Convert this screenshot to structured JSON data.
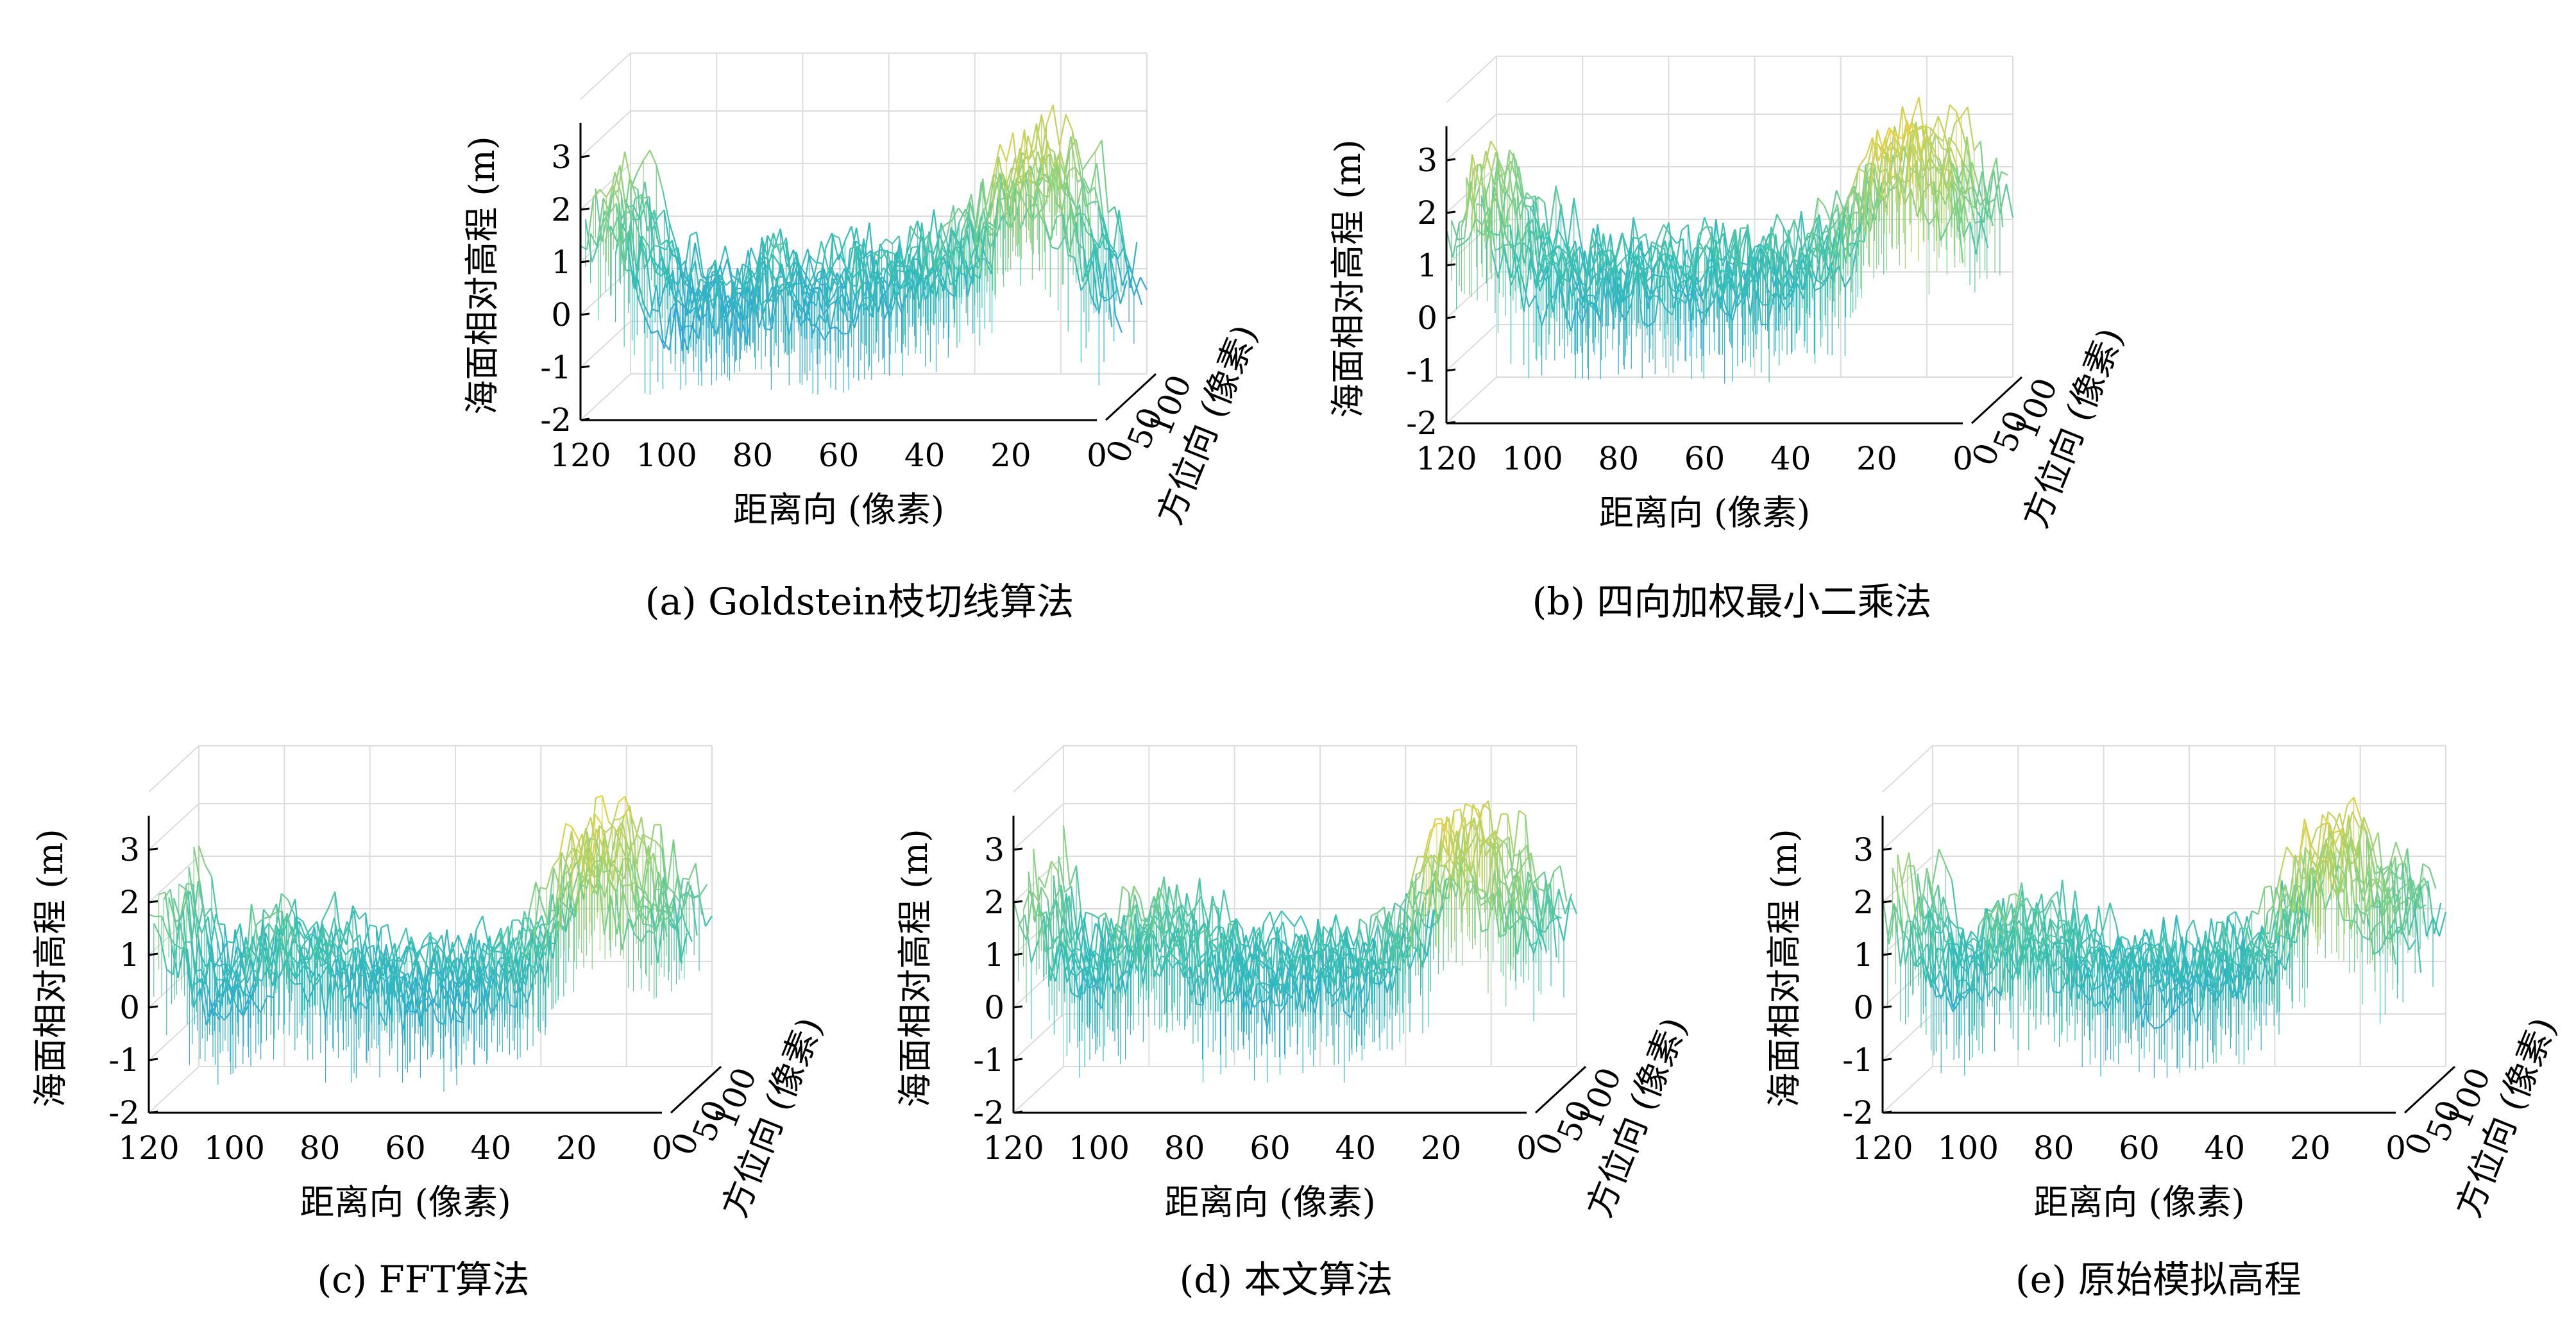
{
  "figure": {
    "panels": [
      {
        "id": "a",
        "caption": "(a) Goldstein枝切线算法",
        "chart_data": {
          "type": "surface",
          "title": "",
          "zlabel": "海面相对高程 (m)",
          "xlabel": "距离向 (像素)",
          "ylabel": "方位向 (像素)",
          "z_ticks": [
            "3",
            "2",
            "1",
            "0",
            "-1",
            "-2"
          ],
          "x_ticks": [
            "120",
            "100",
            "80",
            "60",
            "40",
            "20",
            "0"
          ],
          "y_ticks": [
            "0",
            "50",
            "100"
          ],
          "zlim": [
            -2,
            3.5
          ],
          "xlim": [
            0,
            120
          ],
          "ylim": [
            0,
            100
          ],
          "colormap": [
            "#0d6fd1",
            "#2fa3d8",
            "#34c0b4",
            "#8fd27c",
            "#f1d13f"
          ],
          "surface_profile": {
            "x": [
              0,
              10,
              20,
              25,
              30,
              40,
              60,
              80,
              95,
              100,
              110,
              115,
              120
            ],
            "z_mean": [
              0.2,
              2.0,
              2.8,
              2.4,
              1.6,
              0.8,
              0.4,
              0.4,
              0.2,
              0.0,
              0.9,
              2.2,
              1.5
            ],
            "z_range": [
              -2.0,
              3.5
            ]
          }
        }
      },
      {
        "id": "b",
        "caption": "(b) 四向加权最小二乘法",
        "chart_data": {
          "type": "surface",
          "title": "",
          "zlabel": "海面相对高程 (m)",
          "xlabel": "距离向 (像素)",
          "ylabel": "方位向 (像素)",
          "z_ticks": [
            "3",
            "2",
            "1",
            "0",
            "-1",
            "-2"
          ],
          "x_ticks": [
            "120",
            "100",
            "80",
            "60",
            "40",
            "20",
            "0"
          ],
          "y_ticks": [
            "0",
            "50",
            "100"
          ],
          "zlim": [
            -2,
            3.5
          ],
          "xlim": [
            0,
            120
          ],
          "ylim": [
            0,
            100
          ],
          "colormap": [
            "#0d6fd1",
            "#2fa3d8",
            "#34c0b4",
            "#8fd27c",
            "#f1d13f"
          ],
          "surface_profile": {
            "x": [
              0,
              10,
              20,
              25,
              30,
              40,
              60,
              80,
              95,
              100,
              110,
              115,
              120
            ],
            "z_mean": [
              1.6,
              2.6,
              3.2,
              2.6,
              1.8,
              0.9,
              0.6,
              0.7,
              0.6,
              0.7,
              1.5,
              2.4,
              1.8
            ],
            "z_range": [
              -1.5,
              3.5
            ]
          }
        }
      },
      {
        "id": "c",
        "caption": "(c) FFT算法",
        "chart_data": {
          "type": "surface",
          "title": "",
          "zlabel": "海面相对高程 (m)",
          "xlabel": "距离向 (像素)",
          "ylabel": "方位向 (像素)",
          "z_ticks": [
            "3",
            "2",
            "1",
            "0",
            "-1",
            "-2"
          ],
          "x_ticks": [
            "120",
            "100",
            "80",
            "60",
            "40",
            "20",
            "0"
          ],
          "y_ticks": [
            "0",
            "50",
            "100"
          ],
          "zlim": [
            -2,
            3.5
          ],
          "xlim": [
            0,
            120
          ],
          "ylim": [
            0,
            100
          ],
          "colormap": [
            "#0d6fd1",
            "#2fa3d8",
            "#34c0b4",
            "#8fd27c",
            "#f1d13f"
          ],
          "surface_profile": {
            "x": [
              0,
              10,
              20,
              25,
              30,
              40,
              60,
              80,
              95,
              100,
              110,
              115,
              120
            ],
            "z_mean": [
              1.4,
              2.0,
              3.0,
              2.6,
              1.6,
              0.6,
              0.3,
              0.6,
              1.2,
              0.6,
              0.3,
              1.2,
              1.8
            ],
            "z_range": [
              -1.5,
              3.5
            ]
          }
        }
      },
      {
        "id": "d",
        "caption": "(d) 本文算法",
        "chart_data": {
          "type": "surface",
          "title": "",
          "zlabel": "海面相对高程 (m)",
          "xlabel": "距离向 (像素)",
          "ylabel": "方位向 (像素)",
          "z_ticks": [
            "3",
            "2",
            "1",
            "0",
            "-1",
            "-2"
          ],
          "x_ticks": [
            "120",
            "100",
            "80",
            "60",
            "40",
            "20",
            "0"
          ],
          "y_ticks": [
            "0",
            "50",
            "100"
          ],
          "zlim": [
            -2,
            3.5
          ],
          "xlim": [
            0,
            120
          ],
          "ylim": [
            0,
            100
          ],
          "colormap": [
            "#0d6fd1",
            "#2fa3d8",
            "#34c0b4",
            "#8fd27c",
            "#f1d13f"
          ],
          "surface_profile": {
            "x": [
              0,
              10,
              20,
              25,
              30,
              40,
              60,
              80,
              95,
              100,
              110,
              115,
              120
            ],
            "z_mean": [
              1.4,
              2.0,
              3.1,
              2.6,
              1.6,
              0.7,
              0.4,
              0.8,
              1.4,
              0.8,
              0.5,
              1.4,
              2.0
            ],
            "z_range": [
              -1.5,
              3.5
            ]
          }
        }
      },
      {
        "id": "e",
        "caption": "(e) 原始模拟高程",
        "chart_data": {
          "type": "surface",
          "title": "",
          "zlabel": "海面相对高程 (m)",
          "xlabel": "距离向 (像素)",
          "ylabel": "方位向 (像素)",
          "z_ticks": [
            "3",
            "2",
            "1",
            "0",
            "-1",
            "-2"
          ],
          "x_ticks": [
            "120",
            "100",
            "80",
            "60",
            "40",
            "20",
            "0"
          ],
          "y_ticks": [
            "0",
            "50",
            "100"
          ],
          "zlim": [
            -2,
            3.5
          ],
          "xlim": [
            0,
            120
          ],
          "ylim": [
            0,
            100
          ],
          "colormap": [
            "#0d6fd1",
            "#2fa3d8",
            "#34c0b4",
            "#8fd27c",
            "#f1d13f"
          ],
          "surface_profile": {
            "x": [
              0,
              10,
              20,
              25,
              30,
              40,
              60,
              80,
              95,
              100,
              110,
              115,
              120
            ],
            "z_mean": [
              1.4,
              2.0,
              3.1,
              2.6,
              1.6,
              0.7,
              0.4,
              0.8,
              1.4,
              0.8,
              0.5,
              1.4,
              2.0
            ],
            "z_range": [
              -1.5,
              3.5
            ]
          }
        }
      }
    ]
  }
}
